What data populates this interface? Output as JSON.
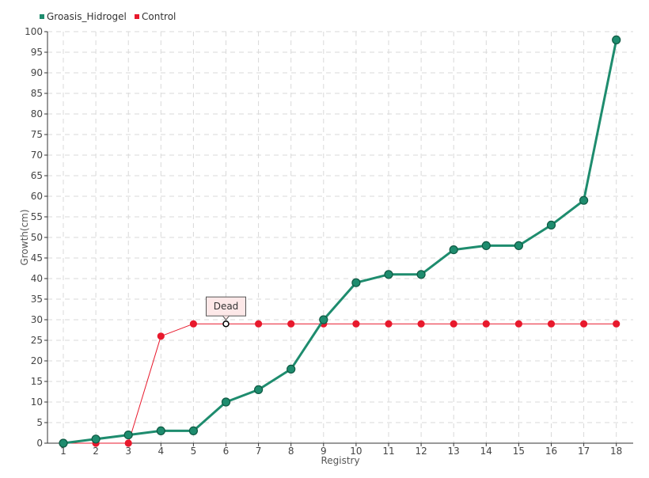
{
  "chart_data": {
    "type": "line",
    "xlabel": "Registry",
    "ylabel": "Growth(cm)",
    "x": [
      1,
      2,
      3,
      4,
      5,
      6,
      7,
      8,
      9,
      10,
      11,
      12,
      13,
      14,
      15,
      16,
      17,
      18
    ],
    "ylim": [
      0,
      100
    ],
    "yticks": [
      0,
      5,
      10,
      15,
      20,
      25,
      30,
      35,
      40,
      45,
      50,
      55,
      60,
      65,
      70,
      75,
      80,
      85,
      90,
      95,
      100
    ],
    "grid": true,
    "legend_position": "top-left",
    "series": [
      {
        "name": "Groasis_Hidrogel",
        "color": "#1e8c6e",
        "values": [
          0,
          1,
          2,
          3,
          3,
          10,
          13,
          18,
          30,
          39,
          41,
          41,
          47,
          48,
          48,
          53,
          59,
          98
        ]
      },
      {
        "name": "Control",
        "color": "#e8192c",
        "values": [
          0,
          0,
          0,
          26,
          29,
          29,
          29,
          29,
          29,
          29,
          29,
          29,
          29,
          29,
          29,
          29,
          29,
          29
        ]
      }
    ],
    "annotation": {
      "text": "Dead",
      "series": "Control",
      "x": 6,
      "y": 29
    }
  }
}
